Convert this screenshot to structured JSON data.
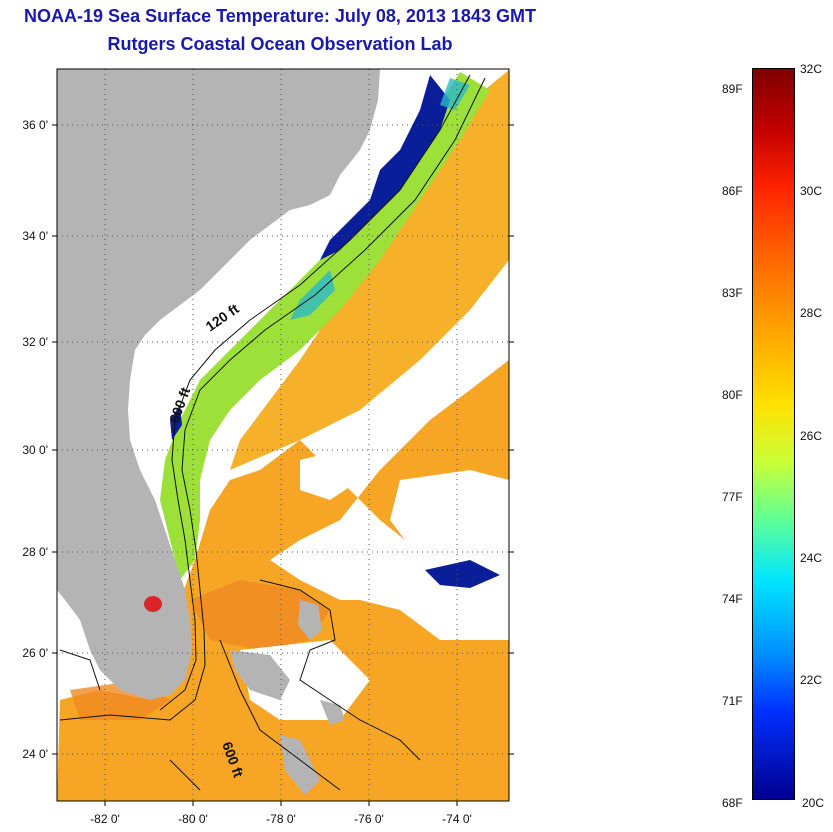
{
  "title": {
    "line1": "NOAA-19 Sea Surface Temperature:  July 08, 2013 1843 GMT",
    "line2": "Rutgers Coastal Ocean Observation Lab"
  },
  "map": {
    "lat_ticks": [
      "36 0'",
      "34 0'",
      "32 0'",
      "30 0'",
      "28 0'",
      "26 0'",
      "24 0'"
    ],
    "lon_ticks": [
      "-82 0'",
      "-80 0'",
      "-78 0'",
      "-76 0'",
      "-74 0'"
    ],
    "contour_labels": [
      "120 ft",
      "600 ft",
      "600 ft"
    ],
    "colors": {
      "land": "#b4b4b4",
      "cloud": "#ffffff",
      "warm": "#f5a01e",
      "cold": "#0a1e9a"
    }
  },
  "colorbar": {
    "fahrenheit": [
      "89F",
      "86F",
      "83F",
      "80F",
      "77F",
      "74F",
      "71F",
      "68F"
    ],
    "celsius": [
      "32C",
      "30C",
      "28C",
      "26C",
      "24C",
      "22C",
      "20C"
    ]
  }
}
